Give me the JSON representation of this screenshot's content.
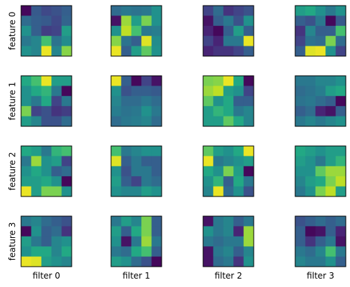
{
  "chart_data": {
    "type": "heatmap",
    "colormap": "viridis",
    "color_range": [
      0,
      1
    ],
    "grid": false,
    "row_labels": [
      "feature 0",
      "feature 1",
      "feature 2",
      "feature 3"
    ],
    "col_labels": [
      "filter 0",
      "filter 1",
      "filter 2",
      "filter 3"
    ],
    "cell_shape": [
      5,
      5
    ],
    "panels": [
      [
        [
          [
            0.02,
            0.28,
            0.22,
            0.25,
            0.3
          ],
          [
            0.35,
            0.3,
            0.28,
            0.22,
            0.32
          ],
          [
            0.5,
            0.3,
            0.18,
            0.2,
            0.55
          ],
          [
            0.4,
            0.45,
            0.7,
            0.38,
            0.48
          ],
          [
            0.5,
            0.45,
            0.97,
            0.45,
            0.82
          ]
        ],
        [
          [
            0.35,
            0.4,
            0.38,
            0.4,
            0.5
          ],
          [
            0.05,
            0.85,
            0.55,
            0.8,
            0.5
          ],
          [
            0.5,
            0.9,
            0.7,
            0.4,
            0.42
          ],
          [
            0.82,
            0.38,
            0.3,
            0.95,
            0.48
          ],
          [
            0.97,
            0.3,
            0.55,
            0.75,
            0.5
          ]
        ],
        [
          [
            0.2,
            0.35,
            0.15,
            0.2,
            0.25
          ],
          [
            0.05,
            0.3,
            0.4,
            0.25,
            0.5
          ],
          [
            0.1,
            0.02,
            0.3,
            0.55,
            0.3
          ],
          [
            0.2,
            0.1,
            0.4,
            0.4,
            0.97
          ],
          [
            0.1,
            0.15,
            0.15,
            0.2,
            0.3
          ]
        ],
        [
          [
            0.55,
            0.6,
            0.5,
            0.4,
            0.5
          ],
          [
            0.3,
            0.25,
            0.4,
            0.02,
            0.28
          ],
          [
            0.15,
            0.45,
            0.3,
            0.3,
            0.7
          ],
          [
            0.2,
            0.38,
            0.35,
            0.8,
            0.35
          ],
          [
            0.3,
            0.95,
            0.97,
            0.5,
            0.2
          ]
        ]
      ],
      [
        [
          [
            0.6,
            0.7,
            0.97,
            0.55,
            0.55
          ],
          [
            0.5,
            0.6,
            0.65,
            0.4,
            0.02
          ],
          [
            0.5,
            0.4,
            0.6,
            0.2,
            0.4
          ],
          [
            0.8,
            0.2,
            0.25,
            0.15,
            0.18
          ],
          [
            0.55,
            0.45,
            0.25,
            0.25,
            0.35
          ]
        ],
        [
          [
            0.97,
            0.3,
            0.02,
            0.2,
            0.05
          ],
          [
            0.5,
            0.25,
            0.3,
            0.3,
            0.28
          ],
          [
            0.45,
            0.35,
            0.35,
            0.4,
            0.35
          ],
          [
            0.42,
            0.38,
            0.4,
            0.5,
            0.4
          ],
          [
            0.35,
            0.4,
            0.42,
            0.45,
            0.35
          ]
        ],
        [
          [
            0.8,
            0.82,
            0.97,
            0.6,
            0.02
          ],
          [
            0.85,
            0.9,
            0.55,
            0.5,
            0.2
          ],
          [
            0.75,
            0.5,
            0.6,
            0.3,
            0.3
          ],
          [
            0.55,
            0.65,
            0.6,
            0.4,
            0.45
          ],
          [
            0.55,
            0.55,
            0.75,
            0.6,
            0.45
          ]
        ],
        [
          [
            0.4,
            0.4,
            0.45,
            0.45,
            0.5
          ],
          [
            0.35,
            0.38,
            0.42,
            0.55,
            0.6
          ],
          [
            0.38,
            0.4,
            0.35,
            0.3,
            0.02
          ],
          [
            0.3,
            0.35,
            0.1,
            0.05,
            0.3
          ],
          [
            0.4,
            0.45,
            0.4,
            0.45,
            0.5
          ]
        ]
      ],
      [
        [
          [
            0.6,
            0.55,
            0.4,
            0.65,
            0.7
          ],
          [
            0.4,
            0.85,
            0.5,
            0.55,
            0.2
          ],
          [
            0.5,
            0.6,
            0.5,
            0.3,
            0.35
          ],
          [
            0.55,
            0.55,
            0.6,
            0.5,
            0.02
          ],
          [
            0.97,
            0.55,
            0.8,
            0.8,
            0.5
          ]
        ],
        [
          [
            0.7,
            0.4,
            0.45,
            0.5,
            0.5
          ],
          [
            0.95,
            0.3,
            0.4,
            0.3,
            0.3
          ],
          [
            0.5,
            0.25,
            0.4,
            0.4,
            0.3
          ],
          [
            0.55,
            0.3,
            0.2,
            0.4,
            0.35
          ],
          [
            0.5,
            0.45,
            0.45,
            0.55,
            0.5
          ]
        ],
        [
          [
            0.75,
            0.55,
            0.5,
            0.6,
            0.97
          ],
          [
            0.97,
            0.4,
            0.45,
            0.5,
            0.55
          ],
          [
            0.6,
            0.5,
            0.8,
            0.55,
            0.02
          ],
          [
            0.5,
            0.65,
            0.3,
            0.6,
            0.4
          ],
          [
            0.45,
            0.97,
            0.35,
            0.5,
            0.25
          ]
        ],
        [
          [
            0.6,
            0.55,
            0.5,
            0.55,
            0.55
          ],
          [
            0.55,
            0.5,
            0.4,
            0.55,
            0.65
          ],
          [
            0.5,
            0.5,
            0.75,
            0.85,
            0.85
          ],
          [
            0.45,
            0.55,
            0.6,
            0.8,
            0.9
          ],
          [
            0.4,
            0.5,
            0.8,
            0.9,
            0.55
          ]
        ]
      ],
      [
        [
          [
            0.4,
            0.45,
            0.35,
            0.3,
            0.25
          ],
          [
            0.02,
            0.5,
            0.3,
            0.35,
            0.15
          ],
          [
            0.55,
            0.4,
            0.3,
            0.45,
            0.5
          ],
          [
            0.5,
            0.6,
            0.6,
            0.45,
            0.6
          ],
          [
            0.97,
            0.95,
            0.55,
            0.5,
            0.45
          ]
        ],
        [
          [
            0.4,
            0.55,
            0.45,
            0.8,
            0.3
          ],
          [
            0.55,
            0.3,
            0.6,
            0.8,
            0.3
          ],
          [
            0.5,
            0.05,
            0.4,
            0.85,
            0.4
          ],
          [
            0.4,
            0.35,
            0.6,
            0.7,
            0.3
          ],
          [
            0.55,
            0.5,
            0.35,
            0.25,
            0.02
          ]
        ],
        [
          [
            0.05,
            0.4,
            0.45,
            0.3,
            0.4
          ],
          [
            0.5,
            0.4,
            0.45,
            0.1,
            0.85
          ],
          [
            0.4,
            0.35,
            0.4,
            0.4,
            0.85
          ],
          [
            0.05,
            0.4,
            0.45,
            0.3,
            0.45
          ],
          [
            0.05,
            0.35,
            0.4,
            0.15,
            0.5
          ]
        ],
        [
          [
            0.25,
            0.3,
            0.35,
            0.3,
            0.35
          ],
          [
            0.3,
            0.02,
            0.05,
            0.3,
            0.1
          ],
          [
            0.3,
            0.15,
            0.3,
            0.4,
            0.05
          ],
          [
            0.4,
            0.35,
            0.45,
            0.7,
            0.4
          ],
          [
            0.45,
            0.4,
            0.4,
            0.5,
            0.3
          ]
        ]
      ]
    ]
  }
}
